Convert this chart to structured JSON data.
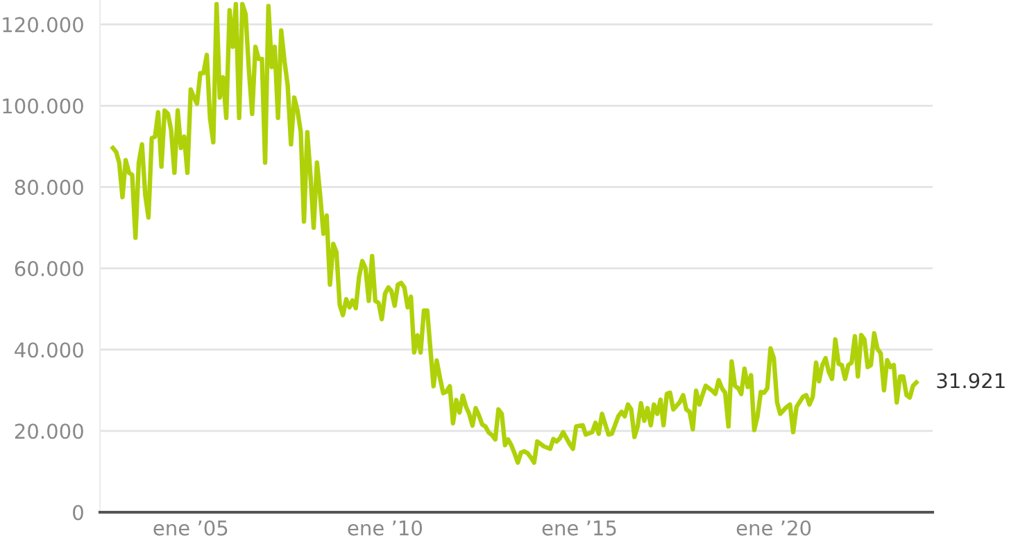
{
  "chart_data": {
    "type": "line",
    "x": [
      "2003-01",
      "2003-02",
      "2003-03",
      "2003-04",
      "2003-05",
      "2003-06",
      "2003-07",
      "2003-08",
      "2003-09",
      "2003-10",
      "2003-11",
      "2003-12",
      "2004-01",
      "2004-02",
      "2004-03",
      "2004-04",
      "2004-05",
      "2004-06",
      "2004-07",
      "2004-08",
      "2004-09",
      "2004-10",
      "2004-11",
      "2004-12",
      "2005-01",
      "2005-02",
      "2005-03",
      "2005-04",
      "2005-05",
      "2005-06",
      "2005-07",
      "2005-08",
      "2005-09",
      "2005-10",
      "2005-11",
      "2005-12",
      "2006-01",
      "2006-02",
      "2006-03",
      "2006-04",
      "2006-05",
      "2006-06",
      "2006-07",
      "2006-08",
      "2006-09",
      "2006-10",
      "2006-11",
      "2006-12",
      "2007-01",
      "2007-02",
      "2007-03",
      "2007-04",
      "2007-05",
      "2007-06",
      "2007-07",
      "2007-08",
      "2007-09",
      "2007-10",
      "2007-11",
      "2007-12",
      "2008-01",
      "2008-02",
      "2008-03",
      "2008-04",
      "2008-05",
      "2008-06",
      "2008-07",
      "2008-08",
      "2008-09",
      "2008-10",
      "2008-11",
      "2008-12",
      "2009-01",
      "2009-02",
      "2009-03",
      "2009-04",
      "2009-05",
      "2009-06",
      "2009-07",
      "2009-08",
      "2009-09",
      "2009-10",
      "2009-11",
      "2009-12",
      "2010-01",
      "2010-02",
      "2010-03",
      "2010-04",
      "2010-05",
      "2010-06",
      "2010-07",
      "2010-08",
      "2010-09",
      "2010-10",
      "2010-11",
      "2010-12",
      "2011-01",
      "2011-02",
      "2011-03",
      "2011-04",
      "2011-05",
      "2011-06",
      "2011-07",
      "2011-08",
      "2011-09",
      "2011-10",
      "2011-11",
      "2011-12",
      "2012-01",
      "2012-02",
      "2012-03",
      "2012-04",
      "2012-05",
      "2012-06",
      "2012-07",
      "2012-08",
      "2012-09",
      "2012-10",
      "2012-11",
      "2012-12",
      "2013-01",
      "2013-02",
      "2013-03",
      "2013-04",
      "2013-05",
      "2013-06",
      "2013-07",
      "2013-08",
      "2013-09",
      "2013-10",
      "2013-11",
      "2013-12",
      "2014-02",
      "2014-04",
      "2014-05",
      "2014-06",
      "2014-07",
      "2014-08",
      "2014-10",
      "2014-11",
      "2014-12",
      "2015-02",
      "2015-03",
      "2015-05",
      "2015-06",
      "2015-07",
      "2015-08",
      "2015-10",
      "2015-11",
      "2016-01",
      "2016-02",
      "2016-03",
      "2016-04",
      "2016-05",
      "2016-06",
      "2016-07",
      "2016-08",
      "2016-09",
      "2016-10",
      "2016-11",
      "2016-12",
      "2017-01",
      "2017-02",
      "2017-03",
      "2017-04",
      "2017-05",
      "2017-06",
      "2017-08",
      "2017-09",
      "2017-10",
      "2017-11",
      "2017-12",
      "2018-01",
      "2018-02",
      "2018-03",
      "2018-04",
      "2018-06",
      "2018-07",
      "2018-08",
      "2018-09",
      "2018-10",
      "2018-11",
      "2018-12",
      "2019-01",
      "2019-02",
      "2019-03",
      "2019-04",
      "2019-05",
      "2019-06",
      "2019-07",
      "2019-08",
      "2019-09",
      "2019-10",
      "2019-11",
      "2019-12",
      "2020-01",
      "2020-02",
      "2020-03",
      "2020-05",
      "2020-06",
      "2020-07",
      "2020-08",
      "2020-10",
      "2020-11",
      "2020-12",
      "2021-01",
      "2021-02",
      "2021-03",
      "2021-04",
      "2021-05",
      "2021-06",
      "2021-07",
      "2021-08",
      "2021-09",
      "2021-10",
      "2021-11",
      "2021-12",
      "2022-01",
      "2022-02",
      "2022-03",
      "2022-04",
      "2022-05",
      "2022-06",
      "2022-07",
      "2022-08",
      "2022-09",
      "2022-10",
      "2022-11",
      "2022-12",
      "2023-01",
      "2023-02",
      "2023-03",
      "2023-04",
      "2023-05",
      "2023-06",
      "2023-07",
      "2023-08",
      "2023-09"
    ],
    "series": [
      {
        "color": "#afd10a",
        "values": [
          89600,
          88600,
          86000,
          77500,
          86600,
          83500,
          83000,
          67500,
          86000,
          90500,
          78000,
          72500,
          92000,
          92400,
          98400,
          85000,
          98800,
          98000,
          94000,
          83500,
          98800,
          89600,
          92400,
          83500,
          104000,
          102000,
          100500,
          108000,
          108000,
          112500,
          97000,
          91000,
          125000,
          102000,
          107000,
          97000,
          123500,
          114500,
          125000,
          97000,
          125000,
          122500,
          109000,
          98000,
          114500,
          111500,
          111500,
          86000,
          124500,
          109500,
          114500,
          97000,
          118500,
          111000,
          105000,
          90500,
          102000,
          98800,
          93500,
          71500,
          93500,
          82500,
          70000,
          86000,
          78000,
          68500,
          73000,
          56000,
          66000,
          64000,
          51000,
          48500,
          52400,
          50400,
          52100,
          50200,
          57800,
          61800,
          60000,
          52000,
          63000,
          52000,
          51500,
          47500,
          53800,
          55300,
          54400,
          50800,
          56000,
          56400,
          55300,
          50400,
          53000,
          39300,
          43500,
          39300,
          49600,
          49600,
          40700,
          31000,
          37300,
          33000,
          29300,
          29700,
          31000,
          21900,
          27600,
          24500,
          28700,
          25900,
          24200,
          21300,
          25600,
          23800,
          21600,
          21100,
          19600,
          19000,
          17900,
          25300,
          24200,
          16500,
          17900,
          16500,
          14500,
          12200,
          14700,
          15000,
          14500,
          13500,
          12200,
          17400,
          16200,
          15600,
          18000,
          17400,
          18200,
          19700,
          16800,
          15600,
          21100,
          21400,
          19100,
          19700,
          22000,
          19300,
          24200,
          19100,
          19300,
          23600,
          24700,
          23600,
          26500,
          25300,
          18500,
          21100,
          26800,
          22500,
          25600,
          21400,
          26500,
          24200,
          27700,
          21400,
          29100,
          29400,
          25300,
          27100,
          28800,
          25300,
          24700,
          20400,
          29900,
          26500,
          28800,
          31100,
          29900,
          29100,
          32500,
          30500,
          29400,
          21100,
          37100,
          31100,
          30500,
          29100,
          35300,
          30800,
          33700,
          20200,
          23600,
          29600,
          29400,
          30500,
          40300,
          37900,
          27000,
          24200,
          25900,
          26500,
          19700,
          25900,
          28400,
          28800,
          26500,
          28400,
          36800,
          32200,
          36200,
          37900,
          34500,
          32800,
          42500,
          36500,
          36200,
          32800,
          36200,
          36800,
          43300,
          33400,
          43600,
          42500,
          35700,
          36200,
          44000,
          40200,
          39100,
          30000,
          37400,
          35700,
          36200,
          27000,
          33400,
          33400,
          28800,
          28200,
          31100,
          31921
        ]
      }
    ],
    "annotations": [
      {
        "text": "31.921",
        "x": "2023-09",
        "y": 31921
      }
    ],
    "xlim": [
      "2002-09",
      "2024-02"
    ],
    "xticks": [
      {
        "value": "2005-01",
        "label": "ene ’05"
      },
      {
        "value": "2010-01",
        "label": "ene ’10"
      },
      {
        "value": "2015-01",
        "label": "ene ’15"
      },
      {
        "value": "2020-01",
        "label": "ene ’20"
      }
    ],
    "ylim": [
      0,
      126000
    ],
    "yticks": [
      0,
      {
        "value": 20000,
        "label": "20.000"
      },
      {
        "value": 40000,
        "label": "40.000"
      },
      {
        "value": 60000,
        "label": "60.000"
      },
      {
        "value": 80000,
        "label": "80.000"
      },
      {
        "value": 100000,
        "label": "100.000"
      },
      {
        "value": 120000,
        "label": "120.000"
      }
    ],
    "grid": "y"
  }
}
